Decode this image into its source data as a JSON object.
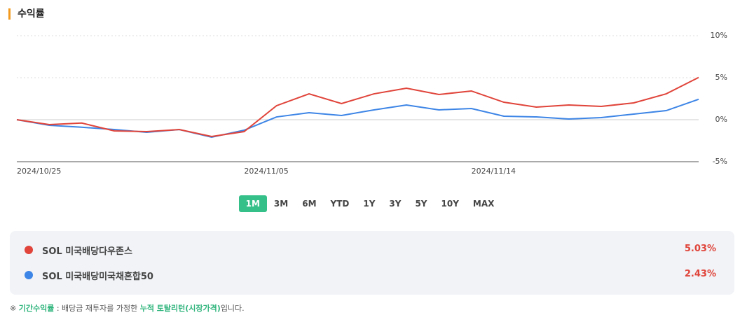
{
  "header": {
    "title": "수익률"
  },
  "chart_data": {
    "type": "line",
    "categories": [
      "2024/10/25",
      null,
      null,
      null,
      null,
      null,
      null,
      "2024/11/05",
      null,
      null,
      null,
      null,
      null,
      null,
      "2024/11/14",
      null,
      null,
      null,
      null,
      null,
      null,
      null
    ],
    "series": [
      {
        "name": "SOL 미국배당다우존스",
        "color": "#e0443a",
        "return_label": "5.03%",
        "values": [
          0,
          -0.58,
          -0.4,
          -1.33,
          -1.42,
          -1.17,
          -2.0,
          -1.42,
          1.67,
          3.08,
          1.92,
          3.08,
          3.75,
          3.0,
          3.42,
          2.08,
          1.5,
          1.75,
          1.58,
          2.0,
          3.08,
          5.03
        ]
      },
      {
        "name": "SOL 미국배당미국채혼합50",
        "color": "#3d85e6",
        "return_label": "2.43%",
        "values": [
          0,
          -0.67,
          -0.9,
          -1.17,
          -1.5,
          -1.17,
          -2.08,
          -1.25,
          0.33,
          0.83,
          0.5,
          1.17,
          1.75,
          1.17,
          1.33,
          0.42,
          0.33,
          0.08,
          0.25,
          0.67,
          1.08,
          2.43
        ]
      }
    ],
    "ylim": [
      -5,
      10
    ],
    "yticks": [
      {
        "value": 10,
        "label": "10%"
      },
      {
        "value": 5,
        "label": "5%"
      },
      {
        "value": 0,
        "label": "0%"
      },
      {
        "value": -5,
        "label": "-5%"
      }
    ],
    "grid": true
  },
  "ranges": {
    "options": [
      "1M",
      "3M",
      "6M",
      "YTD",
      "1Y",
      "3Y",
      "5Y",
      "10Y",
      "MAX"
    ],
    "active": 0
  },
  "footnote": {
    "mark": "※",
    "term": "기간수익률",
    "text1": " : 배당금 재투자를 가정한 ",
    "term2": "누적 토탈리턴(시장가격)",
    "text2": "입니다."
  }
}
